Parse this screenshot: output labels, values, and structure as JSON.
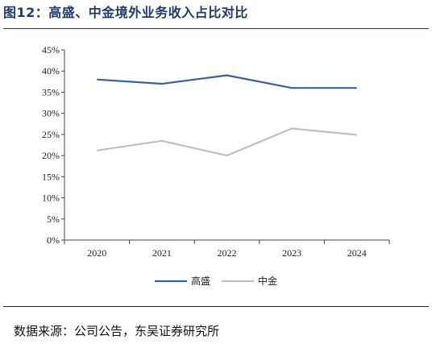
{
  "header": {
    "title": "图12：高盛、中金境外业务收入占比对比"
  },
  "footer": {
    "source": "数据来源：公司公告，东吴证券研究所"
  },
  "colors": {
    "title": "#1f3a6b",
    "gaosheng": "#3d6296",
    "zhongjin": "#bfbfbf"
  },
  "chart_data": {
    "type": "line",
    "title": "",
    "xlabel": "",
    "ylabel": "",
    "categories": [
      "2020",
      "2021",
      "2022",
      "2023",
      "2024"
    ],
    "series": [
      {
        "name": "高盛",
        "values": [
          38.0,
          37.0,
          39.0,
          36.0,
          36.0
        ],
        "color": "#3d6296"
      },
      {
        "name": "中金",
        "values": [
          21.2,
          23.5,
          20.0,
          26.4,
          24.9
        ],
        "color": "#bfbfbf"
      }
    ],
    "ylim": [
      0,
      45
    ],
    "yticks": [
      "0%",
      "5%",
      "10%",
      "15%",
      "20%",
      "25%",
      "30%",
      "35%",
      "40%",
      "45%"
    ],
    "grid": false,
    "legend_position": "bottom-center"
  }
}
